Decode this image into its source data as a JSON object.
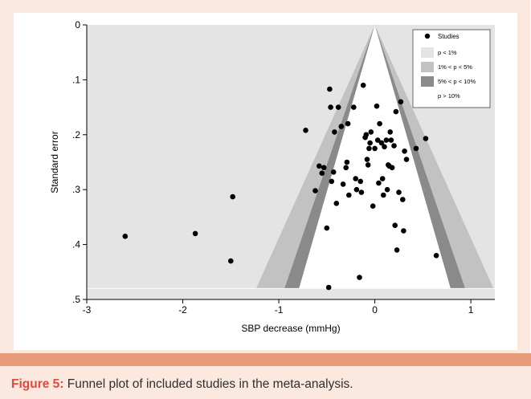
{
  "chart_data": {
    "type": "scatter",
    "xlabel": "SBP decrease (mmHg)",
    "ylabel": "Standard error",
    "xlim": [
      -3,
      1.25
    ],
    "ylim": [
      0,
      0.5
    ],
    "y_reversed": true,
    "x_ticks": [
      -3,
      -2,
      -1,
      0,
      1
    ],
    "x_tick_labels": [
      "-3",
      "-2",
      "-1",
      "0",
      "1"
    ],
    "y_ticks": [
      0,
      0.1,
      0.2,
      0.3,
      0.4,
      0.5
    ],
    "y_tick_labels": [
      "0",
      ".1",
      ".2",
      ".3",
      ".4",
      ".5"
    ],
    "funnel_center": 0,
    "funnel_max_se": 0.48,
    "contours": [
      {
        "label": "p < 1%",
        "z": 2.576,
        "color": "#e4e4e4"
      },
      {
        "label": "1% < p < 5%",
        "z": 1.96,
        "color": "#c2c2c2"
      },
      {
        "label": "5% < p < 10%",
        "z": 1.645,
        "color": "#8a8a8a"
      },
      {
        "label": "p > 10%",
        "z": 0,
        "color": "#ffffff"
      }
    ],
    "legend": {
      "position": "top-right",
      "series_label": "Studies",
      "items": [
        "p < 1%",
        "1% < p < 5%",
        "5% < p < 10%",
        "p > 10%"
      ]
    },
    "series": [
      {
        "name": "Studies",
        "color": "#000000",
        "x": [
          -2.6,
          -1.87,
          -1.5,
          -1.48,
          -0.72,
          -0.62,
          -0.58,
          -0.55,
          -0.53,
          -0.5,
          -0.48,
          -0.47,
          -0.46,
          -0.45,
          -0.43,
          -0.42,
          -0.4,
          -0.38,
          -0.35,
          -0.33,
          -0.3,
          -0.29,
          -0.28,
          -0.27,
          -0.22,
          -0.2,
          -0.19,
          -0.16,
          -0.15,
          -0.14,
          -0.12,
          -0.1,
          -0.09,
          -0.08,
          -0.07,
          -0.06,
          -0.05,
          -0.04,
          -0.02,
          0.0,
          0.02,
          0.03,
          0.04,
          0.05,
          0.07,
          0.08,
          0.09,
          0.1,
          0.12,
          0.13,
          0.14,
          0.15,
          0.16,
          0.17,
          0.18,
          0.2,
          0.21,
          0.22,
          0.23,
          0.25,
          0.27,
          0.29,
          0.3,
          0.31,
          0.33,
          0.43,
          0.53,
          0.64
        ],
        "y": [
          0.385,
          0.38,
          0.43,
          0.313,
          0.192,
          0.302,
          0.257,
          0.27,
          0.26,
          0.37,
          0.478,
          0.117,
          0.15,
          0.285,
          0.268,
          0.195,
          0.325,
          0.15,
          0.185,
          0.29,
          0.26,
          0.25,
          0.18,
          0.31,
          0.15,
          0.28,
          0.3,
          0.46,
          0.285,
          0.305,
          0.11,
          0.205,
          0.2,
          0.245,
          0.255,
          0.225,
          0.215,
          0.195,
          0.33,
          0.225,
          0.148,
          0.21,
          0.288,
          0.18,
          0.215,
          0.28,
          0.31,
          0.222,
          0.21,
          0.3,
          0.255,
          0.257,
          0.195,
          0.21,
          0.26,
          0.22,
          0.365,
          0.158,
          0.41,
          0.305,
          0.14,
          0.318,
          0.375,
          0.23,
          0.245,
          0.225,
          0.207,
          0.42
        ]
      }
    ]
  },
  "caption": {
    "label": "Figure 5:",
    "text": " Funnel plot of included studies in the meta-analysis."
  }
}
